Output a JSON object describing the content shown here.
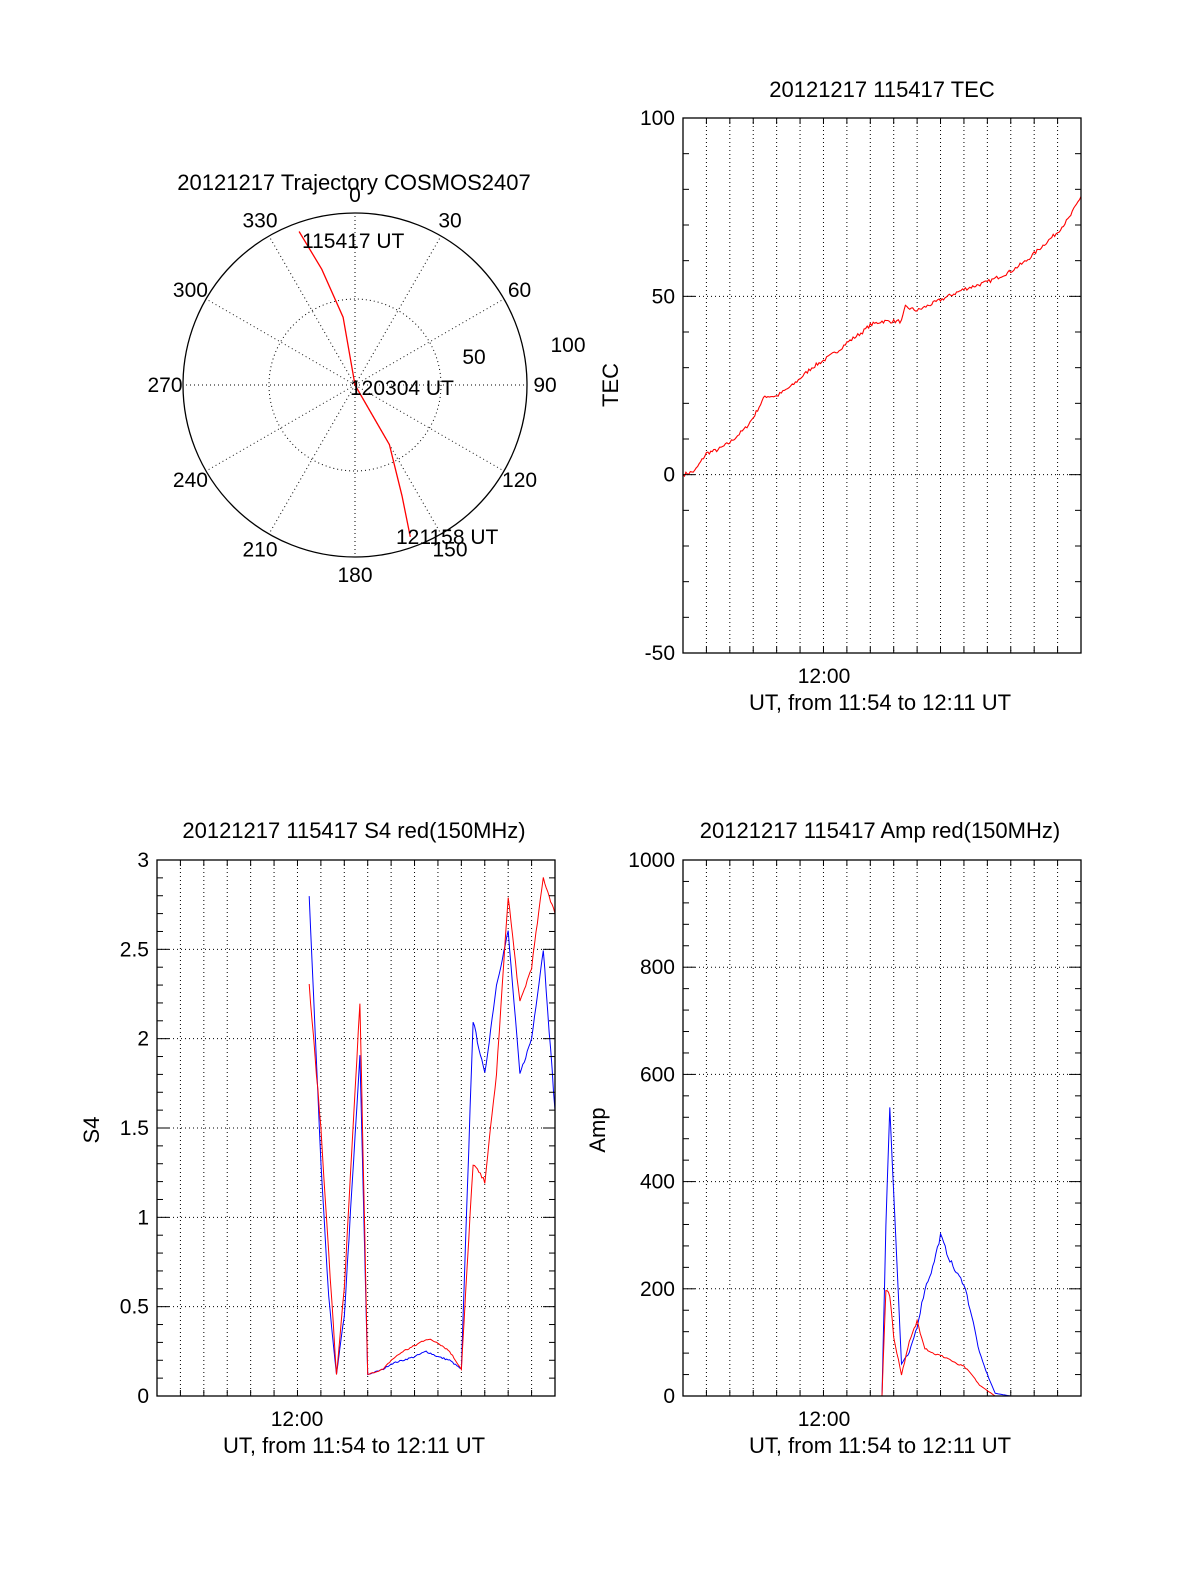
{
  "chart_data": [
    {
      "type": "polar",
      "title": "20121217 Trajectory COSMOS2407",
      "angle_ticks": [
        "0",
        "30",
        "60",
        "90",
        "120",
        "150",
        "180",
        "210",
        "240",
        "270",
        "300",
        "330"
      ],
      "radial_ticks": [
        "50",
        "100"
      ],
      "rlim": [
        0,
        100
      ],
      "grid": true,
      "series": [
        {
          "color": "#ff0000",
          "azimuth_deg": [
            340,
            344,
            350,
            0,
            150,
            157,
            160
          ],
          "radius": [
            95,
            70,
            40,
            0,
            40,
            70,
            94
          ]
        }
      ],
      "annotations": [
        {
          "text": "115417 UT",
          "azimuth_deg": 341,
          "radius": 95
        },
        {
          "text": "120304 UT",
          "azimuth_deg": 0,
          "radius": 0
        },
        {
          "text": "121158 UT",
          "azimuth_deg": 160,
          "radius": 94
        }
      ]
    },
    {
      "type": "line",
      "title": "20121217 115417 TEC",
      "xlabel": "UT, from 11:54 to 12:11 UT",
      "ylabel": "TEC",
      "xlim": [
        "11:54",
        "12:11"
      ],
      "x_tick_labels": [
        "12:00"
      ],
      "ylim": [
        -50,
        100
      ],
      "y_tick_labels": [
        "-50",
        "0",
        "50",
        "100"
      ],
      "grid": true,
      "series": [
        {
          "color": "#ff0000",
          "x": [
            "11:54",
            "11:54:30",
            "11:55",
            "11:55:30",
            "11:56",
            "11:56:40",
            "11:57",
            "11:57:30",
            "11:58",
            "11:58:40",
            "11:59",
            "11:59:30",
            "12:00",
            "12:00:40",
            "12:01",
            "12:01:40",
            "12:02",
            "12:02:30",
            "12:03",
            "12:03:20",
            "12:03:30",
            "12:04",
            "12:05",
            "12:06",
            "12:07",
            "12:07:40",
            "12:08",
            "12:08:40",
            "12:09",
            "12:09:30",
            "12:10",
            "12:10:30",
            "12:11"
          ],
          "y": [
            0,
            1,
            6,
            7,
            9,
            13,
            16,
            22,
            22,
            25,
            27,
            30,
            32,
            35,
            37,
            40,
            42,
            43,
            43,
            43,
            47,
            46,
            49,
            52,
            54,
            56,
            57,
            60,
            62,
            65,
            68,
            72,
            78
          ]
        }
      ]
    },
    {
      "type": "line",
      "title": "20121217 115417 S4 red(150MHz)",
      "xlabel": "UT, from 11:54 to 12:11 UT",
      "ylabel": "S4",
      "xlim": [
        "11:54",
        "12:11"
      ],
      "x_tick_labels": [
        "12:00"
      ],
      "ylim": [
        0,
        3
      ],
      "y_tick_labels": [
        "0",
        "0.5",
        "1",
        "1.5",
        "2",
        "2.5",
        "3"
      ],
      "grid": true,
      "series": [
        {
          "color": "#0000ff",
          "x": [
            "12:00:30",
            "12:01",
            "12:01:20",
            "12:01:40",
            "12:02",
            "12:02:40",
            "12:03",
            "12:03:40",
            "12:04",
            "12:04:30",
            "12:05",
            "12:05:30",
            "12:06",
            "12:06:30",
            "12:07",
            "12:07:30",
            "12:08",
            "12:08:30",
            "12:09",
            "12:09:30",
            "12:10",
            "12:10:30",
            "12:11"
          ],
          "y": [
            2.8,
            1.3,
            0.55,
            0.12,
            0.45,
            1.9,
            0.12,
            0.15,
            0.18,
            0.2,
            0.22,
            0.25,
            0.22,
            0.2,
            0.15,
            2.1,
            1.8,
            2.3,
            2.6,
            1.8,
            2.0,
            2.5,
            1.6
          ]
        },
        {
          "color": "#ff0000",
          "x": [
            "12:00:30",
            "12:01",
            "12:01:20",
            "12:01:40",
            "12:02",
            "12:02:40",
            "12:03",
            "12:03:40",
            "12:04",
            "12:04:30",
            "12:05",
            "12:05:30",
            "12:06",
            "12:06:30",
            "12:07",
            "12:07:30",
            "12:08",
            "12:08:30",
            "12:09",
            "12:09:30",
            "12:10",
            "12:10:30",
            "12:11"
          ],
          "y": [
            2.3,
            1.5,
            0.8,
            0.12,
            0.6,
            2.2,
            0.12,
            0.15,
            0.2,
            0.25,
            0.28,
            0.32,
            0.3,
            0.25,
            0.15,
            1.3,
            1.2,
            1.8,
            2.8,
            2.2,
            2.4,
            2.9,
            2.7
          ]
        }
      ]
    },
    {
      "type": "line",
      "title": "20121217 115417 Amp red(150MHz)",
      "xlabel": "UT, from 11:54 to 12:11 UT",
      "ylabel": "Amp",
      "xlim": [
        "11:54",
        "12:11"
      ],
      "x_tick_labels": [
        "12:00"
      ],
      "ylim": [
        0,
        1000
      ],
      "y_tick_labels": [
        "0",
        "200",
        "400",
        "600",
        "800",
        "1000"
      ],
      "grid": true,
      "series": [
        {
          "color": "#0000ff",
          "x": [
            "11:54",
            "12:00",
            "12:02:30",
            "12:02:40",
            "12:02:50",
            "12:03",
            "12:03:20",
            "12:03:40",
            "12:04",
            "12:04:20",
            "12:04:40",
            "12:05",
            "12:05:20",
            "12:05:40",
            "12:06",
            "12:06:20",
            "12:06:40",
            "12:07",
            "12:07:20",
            "12:08",
            "12:11"
          ],
          "y": [
            0,
            0,
            0,
            320,
            540,
            380,
            60,
            80,
            130,
            200,
            240,
            300,
            260,
            230,
            210,
            150,
            80,
            40,
            5,
            0,
            0
          ]
        },
        {
          "color": "#ff0000",
          "x": [
            "11:54",
            "12:00",
            "12:02:30",
            "12:02:40",
            "12:02:50",
            "12:03",
            "12:03:20",
            "12:03:40",
            "12:04",
            "12:04:20",
            "12:04:40",
            "12:05",
            "12:05:20",
            "12:05:40",
            "12:06",
            "12:06:20",
            "12:06:40",
            "12:07",
            "12:07:20",
            "12:08",
            "12:11"
          ],
          "y": [
            0,
            0,
            0,
            200,
            190,
            110,
            40,
            100,
            140,
            90,
            80,
            75,
            70,
            60,
            55,
            40,
            20,
            10,
            0,
            0,
            0
          ]
        }
      ]
    }
  ]
}
